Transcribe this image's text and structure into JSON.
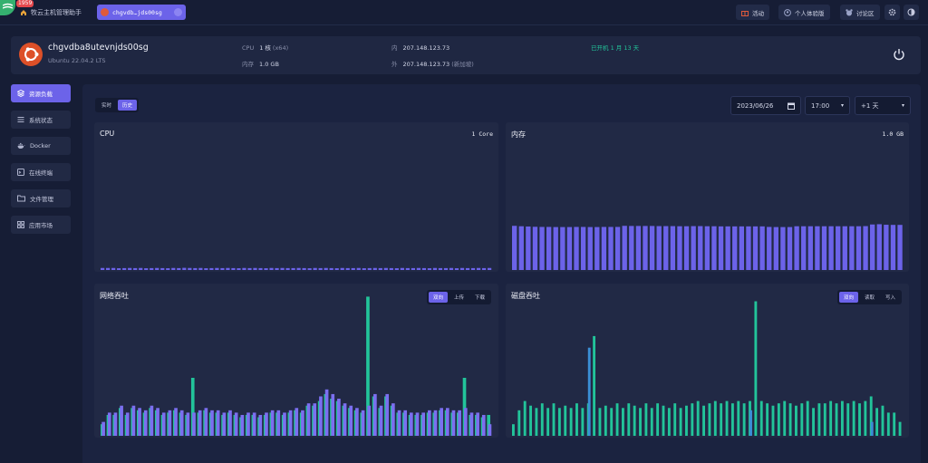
{
  "topbar": {
    "badge": "1959",
    "home_label": "牧云主机管理助手",
    "host_tab": "chgvdb…jds00sg",
    "activity": "活动",
    "personal": "个人体验版",
    "forum": "讨论区"
  },
  "host": {
    "name": "chgvdba8utevnjds00sg",
    "os": "Ubuntu 22.04.2 LTS",
    "cpu_label": "CPU",
    "cpu_value": "1 核",
    "cpu_arch": "(x64)",
    "mem_label": "内存",
    "mem_value": "1.0 GB",
    "ip_in_label": "内",
    "ip_in": "207.148.123.73",
    "ip_out_label": "外",
    "ip_out": "207.148.123.73",
    "ip_out_region": "(新加坡)",
    "uptime": "已开机 1 月 13 天"
  },
  "sidebar": {
    "items": [
      {
        "label": "资源负载",
        "icon": "layers-icon"
      },
      {
        "label": "系统状态",
        "icon": "list-icon"
      },
      {
        "label": "Docker",
        "icon": "docker-icon"
      },
      {
        "label": "在线终端",
        "icon": "terminal-icon"
      },
      {
        "label": "文件管理",
        "icon": "folder-icon"
      },
      {
        "label": "应用市场",
        "icon": "apps-icon"
      }
    ]
  },
  "controls": {
    "mode_realtime": "实时",
    "mode_history": "历史",
    "date": "2023/06/26",
    "time": "17:00",
    "range": "+1 天"
  },
  "colors": {
    "accent": "#6c63e9",
    "teal": "#22c49a",
    "blue": "#3a8fd6"
  },
  "chart_data": [
    {
      "type": "bar",
      "title": "CPU",
      "value_label": "1 Core",
      "ylim": [
        0,
        100
      ],
      "values": [
        1.5,
        1.5,
        1.5,
        1.3,
        1.4,
        1.5,
        1.4,
        1.5,
        1.3,
        1.4,
        1.5,
        1.4,
        1.3,
        1.5,
        1.4,
        1.6,
        1.5,
        1.4,
        1.5,
        1.3,
        1.4,
        1.5,
        1.4,
        1.5,
        1.4,
        1.3,
        1.5,
        1.4,
        1.5,
        1.4,
        1.3,
        1.5,
        1.4,
        1.5,
        1.4,
        1.4,
        1.5,
        1.4,
        1.3,
        1.5,
        1.4,
        1.5,
        1.4,
        1.3,
        1.5,
        1.4,
        1.4,
        1.5,
        1.3,
        1.4,
        1.5,
        1.4,
        1.5,
        1.4,
        1.3,
        1.5,
        1.4,
        1.4,
        1.5,
        1.4,
        1.3,
        1.5,
        1.4,
        1.4,
        1.5,
        1.3,
        1.5,
        1.4,
        1.4,
        1.5,
        1.4,
        1.5
      ]
    },
    {
      "type": "bar",
      "title": "内存",
      "value_label": "1.0 GB",
      "ylim": [
        0,
        100
      ],
      "values": [
        32.5,
        32.2,
        32,
        31.8,
        31.7,
        31.7,
        31.6,
        31.6,
        31.6,
        31.7,
        31.7,
        31.6,
        31.6,
        31.7,
        31.7,
        31.7,
        32.5,
        32.4,
        32.4,
        32.4,
        32.4,
        32.3,
        32.3,
        32.3,
        32.2,
        32.2,
        32.3,
        32.3,
        32.2,
        32.2,
        32.1,
        32.1,
        32.1,
        32.1,
        32.1,
        32.1,
        32.1,
        31.7,
        31.6,
        31.6,
        31.6,
        32.2,
        32.2,
        32.2,
        32.2,
        32.2,
        32.2,
        32.2,
        32.2,
        32.2,
        32.2,
        32.3,
        33.5,
        33.7,
        33.3,
        33.2,
        33.2
      ]
    },
    {
      "type": "bar",
      "title": "网络吞吐",
      "tabs": [
        "双向",
        "上传",
        "下载"
      ],
      "series": [
        {
          "name": "上传",
          "color": "#22c49a",
          "values": [
            10,
            18,
            18,
            24,
            18,
            24,
            22,
            20,
            24,
            22,
            18,
            20,
            22,
            20,
            18,
            50,
            20,
            22,
            20,
            20,
            18,
            20,
            18,
            16,
            18,
            18,
            16,
            18,
            20,
            20,
            18,
            20,
            22,
            20,
            26,
            26,
            30,
            36,
            32,
            30,
            26,
            24,
            22,
            20,
            120,
            34,
            24,
            34,
            26,
            20,
            20,
            18,
            18,
            18,
            20,
            20,
            22,
            22,
            20,
            20,
            50,
            18,
            18,
            16,
            18
          ]
        },
        {
          "name": "下载",
          "color": "#7b6ff0",
          "values": [
            12,
            20,
            20,
            26,
            20,
            26,
            24,
            22,
            26,
            24,
            20,
            22,
            24,
            22,
            20,
            20,
            22,
            24,
            22,
            22,
            20,
            22,
            20,
            18,
            20,
            20,
            18,
            20,
            22,
            22,
            20,
            22,
            24,
            22,
            28,
            28,
            34,
            40,
            36,
            32,
            28,
            26,
            24,
            22,
            26,
            36,
            26,
            36,
            28,
            22,
            22,
            20,
            20,
            20,
            22,
            22,
            24,
            24,
            22,
            22,
            24,
            20,
            20,
            18,
            10
          ]
        }
      ]
    },
    {
      "type": "bar",
      "title": "磁盘吞吐",
      "tabs": [
        "双向",
        "读取",
        "写入"
      ],
      "series": [
        {
          "name": "写入",
          "color": "#22c49a",
          "values": [
            10,
            22,
            30,
            26,
            24,
            28,
            24,
            28,
            24,
            26,
            24,
            28,
            24,
            28,
            86,
            24,
            26,
            24,
            28,
            24,
            28,
            26,
            24,
            28,
            24,
            28,
            26,
            24,
            28,
            24,
            26,
            28,
            30,
            26,
            28,
            30,
            28,
            30,
            28,
            30,
            28,
            30,
            116,
            30,
            28,
            26,
            28,
            30,
            28,
            26,
            28,
            30,
            24,
            28,
            28,
            30,
            28,
            30,
            28,
            30,
            28,
            30,
            34,
            24,
            26,
            20,
            20,
            12
          ]
        },
        {
          "name": "读取",
          "color": "#3a8fd6",
          "values": [
            0,
            0,
            0,
            0,
            0,
            0,
            0,
            0,
            0,
            0,
            0,
            0,
            0,
            76,
            0,
            0,
            0,
            0,
            0,
            0,
            0,
            0,
            0,
            0,
            0,
            0,
            0,
            0,
            0,
            0,
            0,
            0,
            0,
            0,
            0,
            0,
            0,
            0,
            0,
            0,
            0,
            22,
            0,
            0,
            0,
            0,
            0,
            0,
            0,
            0,
            0,
            0,
            0,
            0,
            0,
            0,
            0,
            0,
            0,
            0,
            0,
            0,
            12,
            0,
            0,
            0,
            0,
            0
          ]
        }
      ]
    }
  ]
}
